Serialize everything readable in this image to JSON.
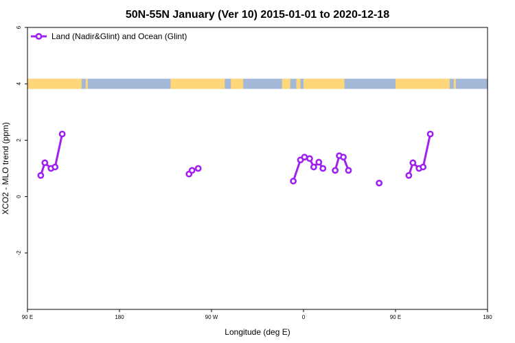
{
  "chart_data": {
    "type": "line",
    "title": "50N-55N January (Ver 10)   2015-01-01 to 2020-12-18",
    "xlabel": "Longitude (deg E)",
    "ylabel": "XCO2 - MLO trend (ppm)",
    "x_axis": {
      "range": [
        90,
        450
      ],
      "ticks": [
        {
          "value": 90,
          "label": "90 E"
        },
        {
          "value": 180,
          "label": "180"
        },
        {
          "value": 270,
          "label": "90 W"
        },
        {
          "value": 360,
          "label": "0"
        },
        {
          "value": 450,
          "label": "90 E"
        },
        {
          "value": 540,
          "label": "180"
        }
      ],
      "display_range": [
        90,
        540
      ]
    },
    "y_axis": {
      "range": [
        -4,
        6
      ],
      "ticks": [
        {
          "value": -2,
          "label": "-2"
        },
        {
          "value": 0,
          "label": "0"
        },
        {
          "value": 2,
          "label": "2"
        },
        {
          "value": 4,
          "label": "4"
        },
        {
          "value": 6,
          "label": "6"
        }
      ]
    },
    "grid": false,
    "legend": {
      "placement": "top-left"
    },
    "series": [
      {
        "name": "Land (Nadir&Glint) and Ocean (Glint)",
        "color": "#a020f0",
        "segments": [
          [
            [
              103,
              0.75
            ],
            [
              107,
              1.2
            ],
            [
              113,
              1.0
            ],
            [
              117,
              1.05
            ],
            [
              124,
              2.22
            ]
          ],
          [
            [
              248,
              0.8
            ],
            [
              251,
              0.93
            ],
            [
              257,
              1.0
            ]
          ],
          [
            [
              350,
              0.55
            ],
            [
              357,
              1.3
            ],
            [
              361,
              1.4
            ],
            [
              366,
              1.35
            ],
            [
              370,
              1.05
            ],
            [
              375,
              1.22
            ],
            [
              379,
              1.0
            ]
          ],
          [
            [
              391,
              0.93
            ],
            [
              395,
              1.45
            ],
            [
              399,
              1.4
            ],
            [
              404,
              0.93
            ]
          ],
          [
            [
              434,
              0.48
            ]
          ],
          [
            [
              463,
              0.75
            ],
            [
              467,
              1.2
            ],
            [
              473,
              1.0
            ],
            [
              477,
              1.05
            ],
            [
              484,
              2.22
            ]
          ]
        ]
      }
    ],
    "landmask": {
      "y_center": 4,
      "land_color": "#fdd77a",
      "ocean_color": "#a4b9d8",
      "land_ranges": [
        [
          90,
          143
        ],
        [
          147,
          149
        ],
        [
          230,
          283
        ],
        [
          289,
          301
        ],
        [
          339,
          347
        ],
        [
          353,
          357
        ],
        [
          360,
          400
        ],
        [
          450,
          503
        ],
        [
          507,
          509
        ]
      ]
    }
  }
}
